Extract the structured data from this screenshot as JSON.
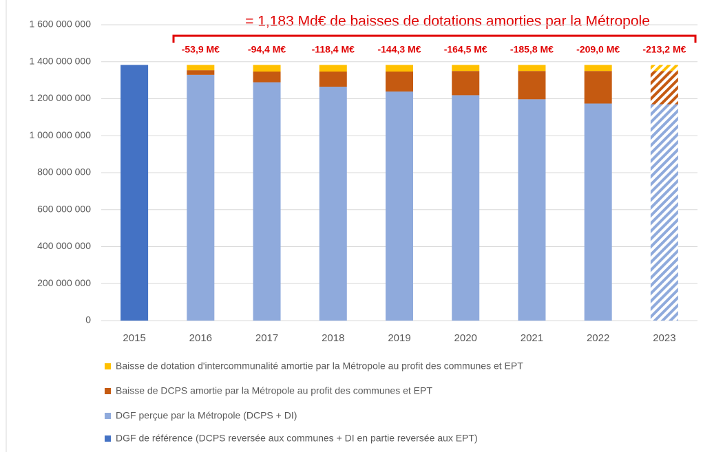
{
  "chart_data": {
    "type": "stacked_bar",
    "annotation": "= 1,183 Md€ de baisses de dotations amorties par la Métropole",
    "reduction_labels": [
      "-53,9 M€",
      "-94,4 M€",
      "-118,4 M€",
      "-144,3 M€",
      "-164,5 M€",
      "-185,8 M€",
      "-209,0 M€",
      "-213,2 M€"
    ],
    "categories": [
      "2015",
      "2016",
      "2017",
      "2018",
      "2019",
      "2020",
      "2021",
      "2022",
      "2023"
    ],
    "hatched": [
      false,
      false,
      false,
      false,
      false,
      false,
      false,
      false,
      true
    ],
    "series": [
      {
        "name": "DGF de référence (DCPS reversée aux communes + DI en partie reversée aux EPT)",
        "color": "#4472c4",
        "values": [
          1383000000,
          null,
          null,
          null,
          null,
          null,
          null,
          null,
          null
        ]
      },
      {
        "name": "DGF perçue par la Métropole (DCPS + DI)",
        "color": "#8faadc",
        "values": [
          null,
          1329000000,
          1289000000,
          1265000000,
          1239000000,
          1219000000,
          1197000000,
          1174000000,
          1170000000
        ]
      },
      {
        "name": "Baisse de DCPS amortie par la Métropole au profit des communes et EPT",
        "color": "#c55a11",
        "values": [
          null,
          25000000,
          58000000,
          82000000,
          108000000,
          131000000,
          153000000,
          176000000,
          180000000
        ]
      },
      {
        "name": "Baisse de dotation d'intercommunalité amortie par la Métropole au profit des communes et EPT",
        "color": "#ffc000",
        "values": [
          null,
          29000000,
          36000000,
          36000000,
          36000000,
          33000000,
          33000000,
          33000000,
          33000000
        ]
      }
    ],
    "ylim": [
      0,
      1600000000
    ],
    "yticks": [
      0,
      {
        "value": 200000000,
        "label": "200 000 000"
      },
      {
        "value": 400000000,
        "label": "400 000 000"
      },
      {
        "value": 600000000,
        "label": "600 000 000"
      },
      {
        "value": 800000000,
        "label": "800 000 000"
      },
      {
        "value": 1000000000,
        "label": "1 000 000 000"
      },
      {
        "value": 1200000000,
        "label": "1 200 000 000"
      },
      {
        "value": 1400000000,
        "label": "1 400 000 000"
      },
      {
        "value": 1600000000,
        "label": "1 600 000 000"
      }
    ],
    "grid": true
  }
}
